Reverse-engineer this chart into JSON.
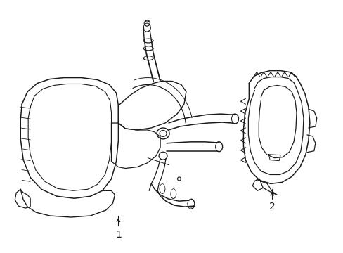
{
  "bg_color": "#ffffff",
  "line_color": "#1a1a1a",
  "line_width": 1.0,
  "label1": "1",
  "label2": "2",
  "figsize": [
    4.89,
    3.6
  ],
  "dpi": 100
}
